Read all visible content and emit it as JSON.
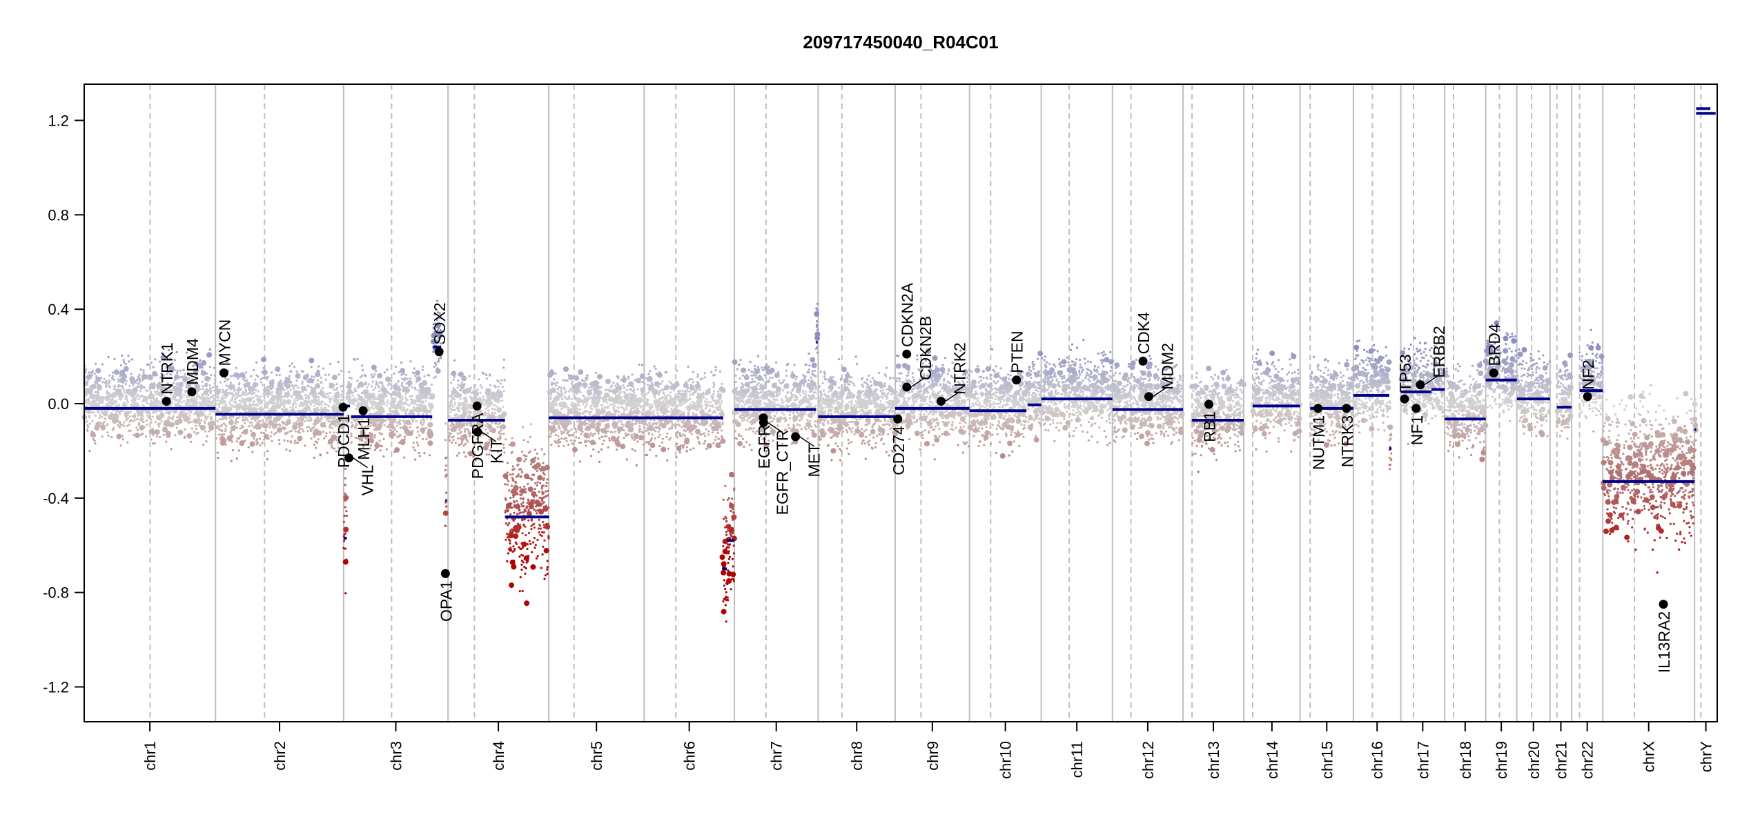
{
  "chart_data": {
    "type": "scatter",
    "title": "209717450040_R04C01",
    "xlabel": "",
    "ylabel": "",
    "ylim": [
      -1.35,
      1.35
    ],
    "yticks": [
      "1.2",
      "0.8",
      "0.4",
      "0.0",
      "-0.4",
      "-0.8",
      "-1.2"
    ],
    "ytick_values": [
      1.2,
      0.8,
      0.4,
      0.0,
      -0.4,
      -0.8,
      -1.2
    ],
    "colors": {
      "gain": "#8c8cc0",
      "neutral": "#d3d3d3",
      "loss": "#b07070",
      "strong_loss": "#b00000",
      "segment": "#00008b",
      "gene": "#000000",
      "boundary": "#bebebe"
    },
    "chromosomes": [
      {
        "name": "chr1",
        "length_mb": 249,
        "centromere_mb": 125
      },
      {
        "name": "chr2",
        "length_mb": 243,
        "centromere_mb": 93
      },
      {
        "name": "chr3",
        "length_mb": 198,
        "centromere_mb": 91
      },
      {
        "name": "chr4",
        "length_mb": 191,
        "centromere_mb": 50
      },
      {
        "name": "chr5",
        "length_mb": 181,
        "centromere_mb": 48
      },
      {
        "name": "chr6",
        "length_mb": 171,
        "centromere_mb": 60
      },
      {
        "name": "chr7",
        "length_mb": 159,
        "centromere_mb": 60
      },
      {
        "name": "chr8",
        "length_mb": 146,
        "centromere_mb": 45
      },
      {
        "name": "chr9",
        "length_mb": 141,
        "centromere_mb": 49
      },
      {
        "name": "chr10",
        "length_mb": 136,
        "centromere_mb": 40
      },
      {
        "name": "chr11",
        "length_mb": 135,
        "centromere_mb": 53
      },
      {
        "name": "chr12",
        "length_mb": 134,
        "centromere_mb": 35
      },
      {
        "name": "chr13",
        "length_mb": 115,
        "centromere_mb": 17
      },
      {
        "name": "chr14",
        "length_mb": 107,
        "centromere_mb": 17
      },
      {
        "name": "chr15",
        "length_mb": 101,
        "centromere_mb": 19
      },
      {
        "name": "chr16",
        "length_mb": 90,
        "centromere_mb": 36
      },
      {
        "name": "chr17",
        "length_mb": 83,
        "centromere_mb": 24
      },
      {
        "name": "chr18",
        "length_mb": 78,
        "centromere_mb": 17
      },
      {
        "name": "chr19",
        "length_mb": 59,
        "centromere_mb": 26
      },
      {
        "name": "chr20",
        "length_mb": 63,
        "centromere_mb": 28
      },
      {
        "name": "chr21",
        "length_mb": 41,
        "centromere_mb": 13
      },
      {
        "name": "chr22",
        "length_mb": 59,
        "centromere_mb": 15
      },
      {
        "name": "chrX",
        "length_mb": 174,
        "centromere_mb": 60
      },
      {
        "name": "chrY",
        "length_mb": 43,
        "centromere_mb": 12
      }
    ],
    "segments": [
      {
        "chr": "chr1",
        "start": 0,
        "end": 249,
        "value": -0.02
      },
      {
        "chr": "chr2",
        "start": 0,
        "end": 243,
        "value": -0.045
      },
      {
        "chr": "chr3",
        "start": 0,
        "end": 6,
        "value": -0.57
      },
      {
        "chr": "chr3",
        "start": 6,
        "end": 12,
        "value": -0.01
      },
      {
        "chr": "chr3",
        "start": 14,
        "end": 168,
        "value": -0.055
      },
      {
        "chr": "chr3",
        "start": 170,
        "end": 185,
        "value": 0.24
      },
      {
        "chr": "chr3",
        "start": 193,
        "end": 196,
        "value": -0.41
      },
      {
        "chr": "chr4",
        "start": 0,
        "end": 108,
        "value": -0.07
      },
      {
        "chr": "chr4",
        "start": 108,
        "end": 191,
        "value": -0.48
      },
      {
        "chr": "chr5",
        "start": 0,
        "end": 181,
        "value": -0.06
      },
      {
        "chr": "chr6",
        "start": 0,
        "end": 150,
        "value": -0.06
      },
      {
        "chr": "chr6",
        "start": 148,
        "end": 157,
        "value": -0.7
      },
      {
        "chr": "chr6",
        "start": 157,
        "end": 171,
        "value": -0.58
      },
      {
        "chr": "chr7",
        "start": 0,
        "end": 155,
        "value": -0.025
      },
      {
        "chr": "chr7",
        "start": 155,
        "end": 158,
        "value": 0.26
      },
      {
        "chr": "chr8",
        "start": 0,
        "end": 146,
        "value": -0.055
      },
      {
        "chr": "chr9",
        "start": 0,
        "end": 141,
        "value": -0.02
      },
      {
        "chr": "chr10",
        "start": 0,
        "end": 108,
        "value": -0.03
      },
      {
        "chr": "chr10",
        "start": 110,
        "end": 136,
        "value": -0.005
      },
      {
        "chr": "chr11",
        "start": 0,
        "end": 135,
        "value": 0.02
      },
      {
        "chr": "chr12",
        "start": 0,
        "end": 134,
        "value": -0.025
      },
      {
        "chr": "chr13",
        "start": 17,
        "end": 115,
        "value": -0.07
      },
      {
        "chr": "chr14",
        "start": 17,
        "end": 107,
        "value": -0.01
      },
      {
        "chr": "chr15",
        "start": 19,
        "end": 101,
        "value": -0.02
      },
      {
        "chr": "chr16",
        "start": 0,
        "end": 68,
        "value": 0.035
      },
      {
        "chr": "chr16",
        "start": 68,
        "end": 72,
        "value": -0.19
      },
      {
        "chr": "chr17",
        "start": 0,
        "end": 58,
        "value": 0.05
      },
      {
        "chr": "chr17",
        "start": 58,
        "end": 83,
        "value": 0.06
      },
      {
        "chr": "chr18",
        "start": 0,
        "end": 78,
        "value": -0.065
      },
      {
        "chr": "chr19",
        "start": 0,
        "end": 59,
        "value": 0.1
      },
      {
        "chr": "chr20",
        "start": 0,
        "end": 63,
        "value": 0.02
      },
      {
        "chr": "chr21",
        "start": 13,
        "end": 41,
        "value": -0.015
      },
      {
        "chr": "chr22",
        "start": 15,
        "end": 59,
        "value": 0.055
      },
      {
        "chr": "chrX",
        "start": 0,
        "end": 174,
        "value": -0.33
      },
      {
        "chr": "chrY",
        "start": 3,
        "end": 40,
        "value": 1.23
      },
      {
        "chr": "chrY",
        "start": 3,
        "end": 30,
        "value": 1.25
      },
      {
        "chr": "chrY",
        "start": 0,
        "end": 3,
        "value": -0.11
      }
    ],
    "genes": [
      {
        "name": "NTRK1",
        "chr": "chr1",
        "pos": 156,
        "value": 0.01
      },
      {
        "name": "MDM4",
        "chr": "chr1",
        "pos": 204,
        "value": 0.05
      },
      {
        "name": "MYCN",
        "chr": "chr2",
        "pos": 16,
        "value": 0.13
      },
      {
        "name": "PDCD1",
        "chr": "chr2",
        "pos": 242,
        "value": -0.015
      },
      {
        "name": "VHL",
        "chr": "chr3",
        "pos": 10,
        "value": -0.23
      },
      {
        "name": "MLH1",
        "chr": "chr3",
        "pos": 37,
        "value": -0.03
      },
      {
        "name": "SOX2",
        "chr": "chr3",
        "pos": 181,
        "value": 0.22
      },
      {
        "name": "OPA1",
        "chr": "chr3",
        "pos": 193,
        "value": -0.72
      },
      {
        "name": "PDGFRA",
        "chr": "chr4",
        "pos": 55,
        "value": -0.01
      },
      {
        "name": "KIT",
        "chr": "chr4",
        "pos": 56,
        "value": -0.12
      },
      {
        "name": "EGFR",
        "chr": "chr7",
        "pos": 55,
        "value": -0.06
      },
      {
        "name": "EGFR_CTR",
        "chr": "chr7",
        "pos": 55.5,
        "value": -0.08
      },
      {
        "name": "MET",
        "chr": "chr7",
        "pos": 116,
        "value": -0.14
      },
      {
        "name": "CD274",
        "chr": "chr9",
        "pos": 5,
        "value": -0.065
      },
      {
        "name": "CDKN2A",
        "chr": "chr9",
        "pos": 21.9,
        "value": 0.21
      },
      {
        "name": "CDKN2B",
        "chr": "chr9",
        "pos": 22,
        "value": 0.07
      },
      {
        "name": "NTRK2",
        "chr": "chr9",
        "pos": 87,
        "value": 0.01
      },
      {
        "name": "PTEN",
        "chr": "chr10",
        "pos": 89,
        "value": 0.1
      },
      {
        "name": "CDK4",
        "chr": "chr12",
        "pos": 58,
        "value": 0.18
      },
      {
        "name": "MDM2",
        "chr": "chr12",
        "pos": 69,
        "value": 0.03
      },
      {
        "name": "RB1",
        "chr": "chr13",
        "pos": 49,
        "value": -0.003
      },
      {
        "name": "NUTM1",
        "chr": "chr15",
        "pos": 34,
        "value": -0.02
      },
      {
        "name": "NTRK3",
        "chr": "chr15",
        "pos": 88,
        "value": -0.02
      },
      {
        "name": "TP53",
        "chr": "chr17",
        "pos": 7,
        "value": 0.02
      },
      {
        "name": "NF1",
        "chr": "chr17",
        "pos": 29,
        "value": -0.02
      },
      {
        "name": "ERBB2",
        "chr": "chr17",
        "pos": 37,
        "value": 0.08
      },
      {
        "name": "BRD4",
        "chr": "chr19",
        "pos": 15,
        "value": 0.13
      },
      {
        "name": "NF2",
        "chr": "chr22",
        "pos": 30,
        "value": 0.03
      },
      {
        "name": "IL13RA2",
        "chr": "chrX",
        "pos": 115,
        "value": -0.85
      }
    ]
  }
}
